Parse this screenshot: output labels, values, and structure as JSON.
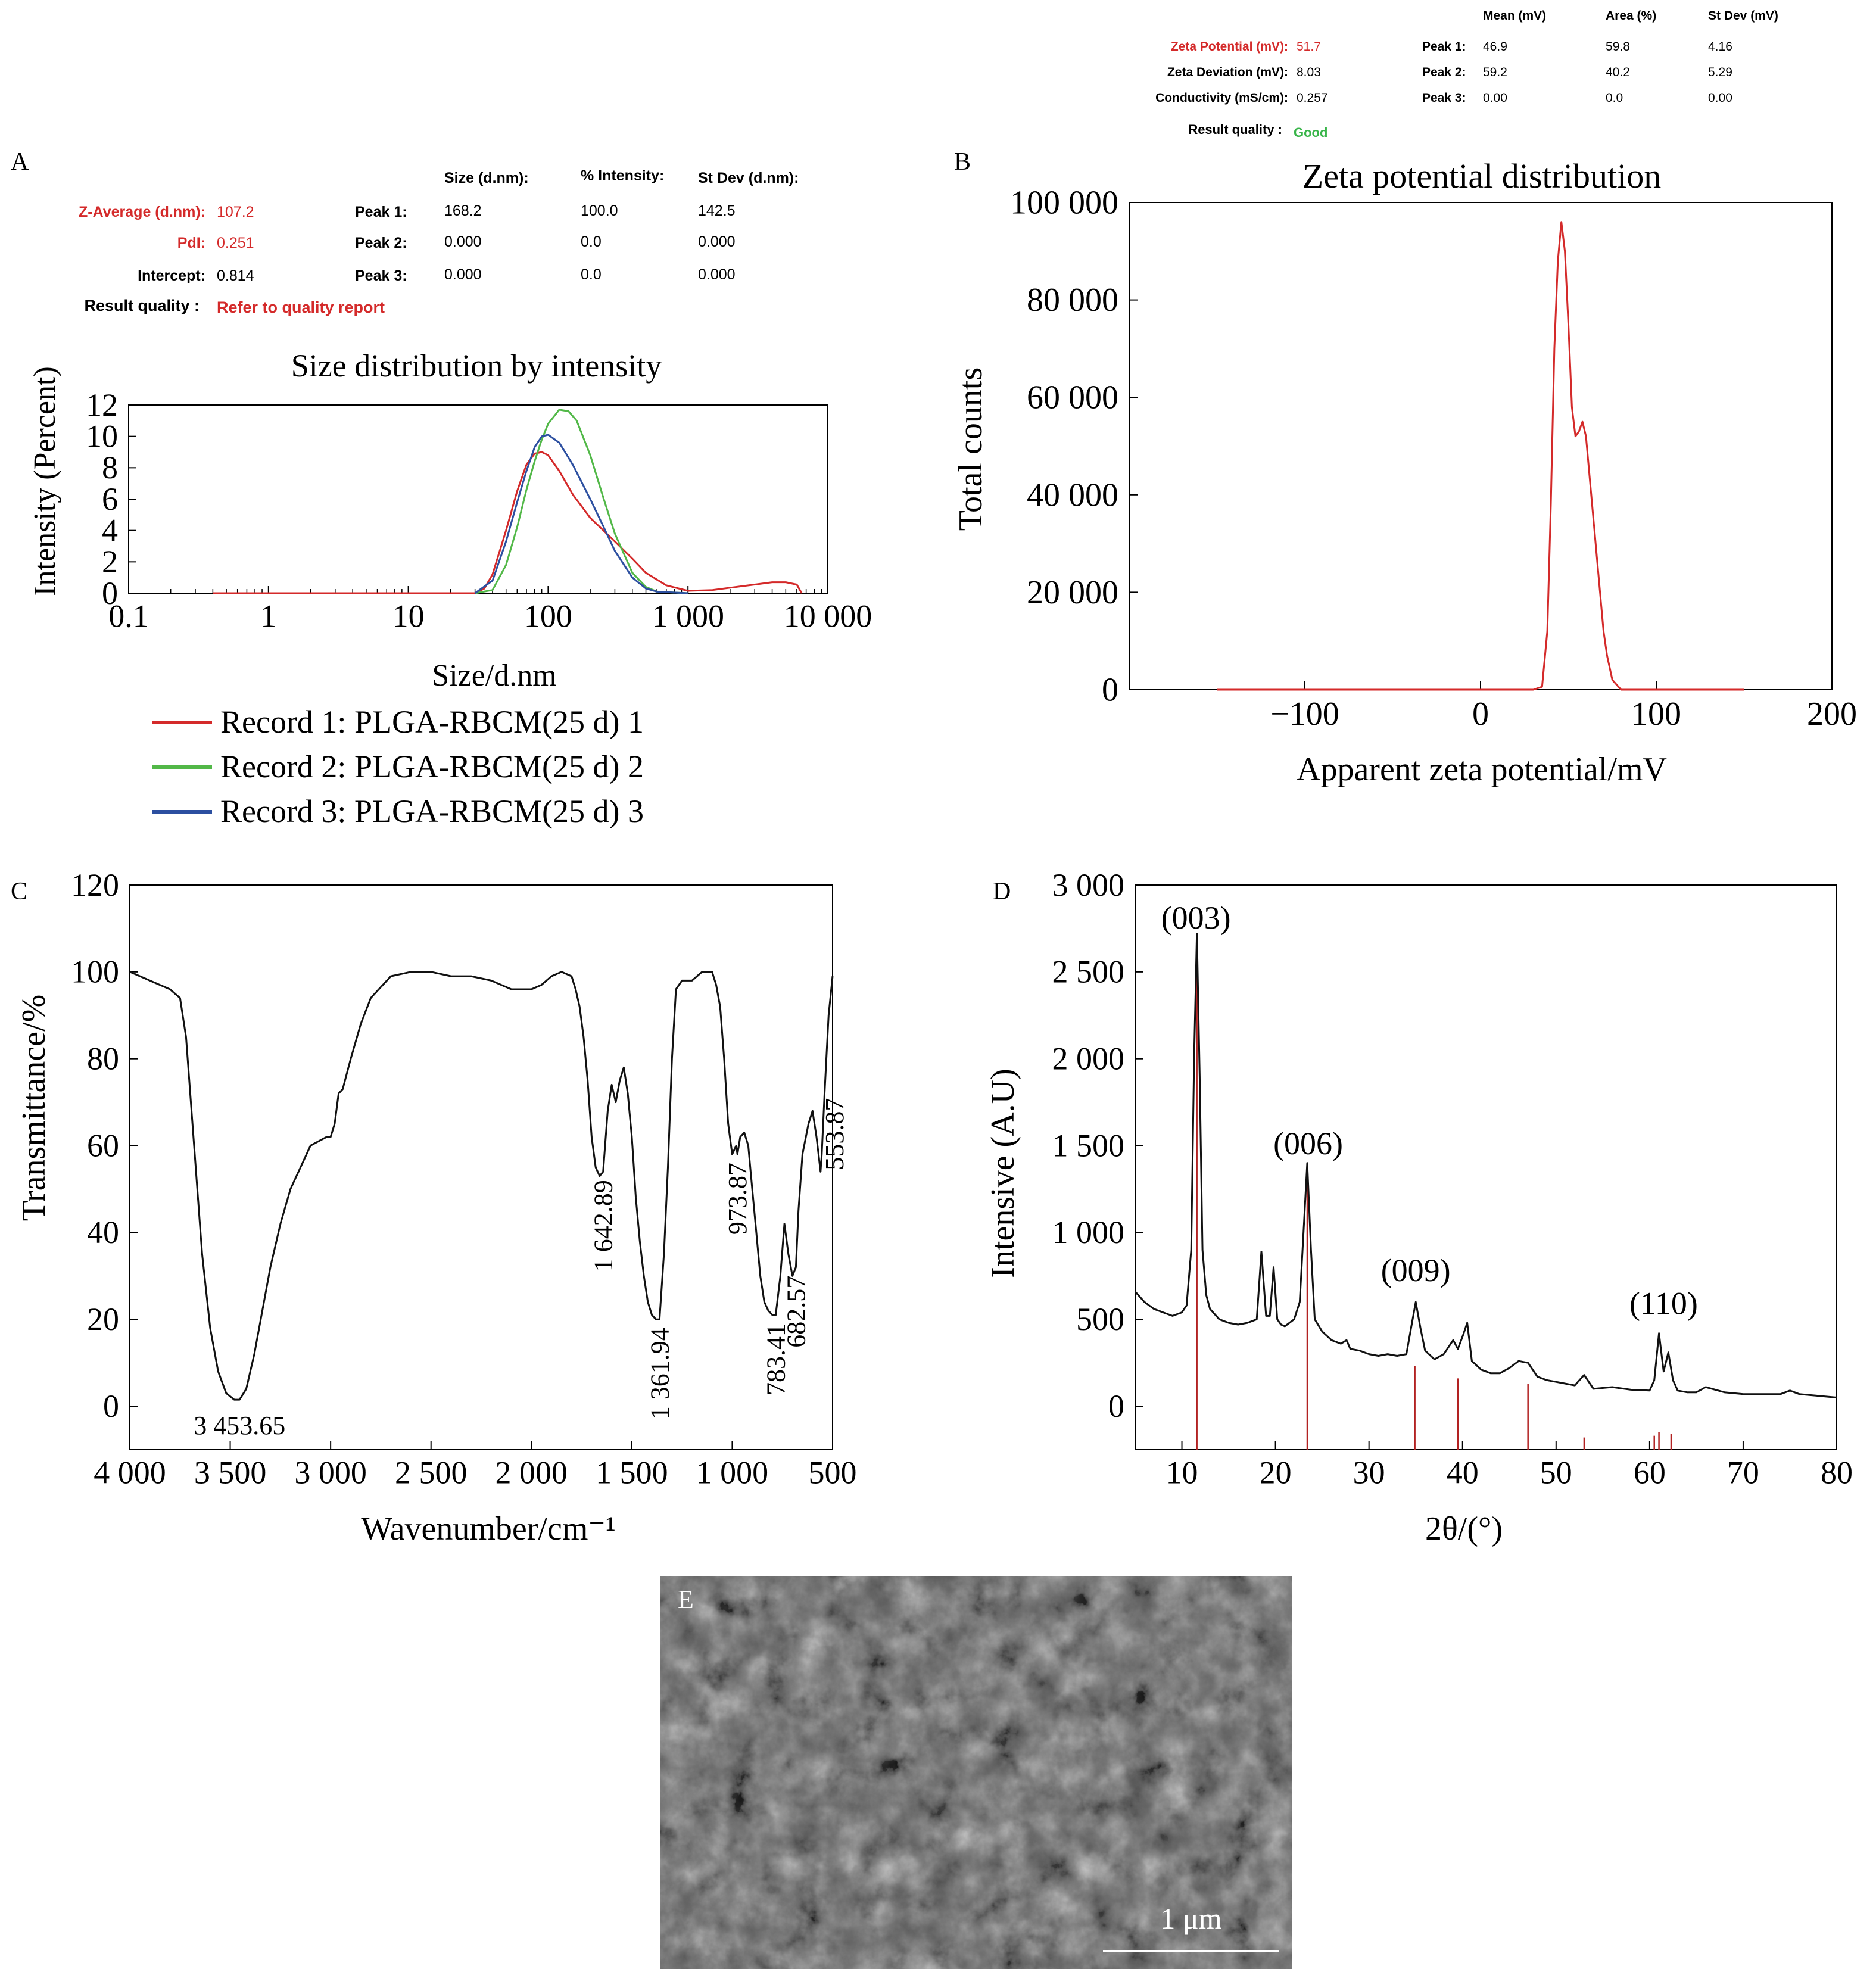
{
  "panels": {
    "A": {
      "letter": "A",
      "title": "Size distribution by intensity",
      "xlabel": "Size/d.nm",
      "ylabel": "Intensity (Percent)",
      "summary_headers": [
        "Size (d.nm):",
        "% Intensity:",
        "St Dev (d.nm):"
      ],
      "summary_left": [
        {
          "label": "Z-Average (d.nm):",
          "value": "107.2"
        },
        {
          "label": "PdI:",
          "value": "0.251"
        },
        {
          "label": "Intercept:",
          "value": "0.814"
        },
        {
          "label": "Result quality :",
          "value": "Refer to quality report"
        }
      ],
      "summary_peaks": [
        {
          "label": "Peak 1:",
          "values": [
            "168.2",
            "100.0",
            "142.5"
          ]
        },
        {
          "label": "Peak 2:",
          "values": [
            "0.000",
            "0.0",
            "0.000"
          ]
        },
        {
          "label": "Peak 3:",
          "values": [
            "0.000",
            "0.0",
            "0.000"
          ]
        }
      ]
    },
    "B": {
      "letter": "B",
      "title": "Zeta potential distribution",
      "xlabel": "Apparent zeta potential/mV",
      "ylabel": "Total counts",
      "summary_headers": [
        "Mean (mV)",
        "Area (%)",
        "St Dev (mV)"
      ],
      "summary_left": [
        {
          "label": "Zeta Potential (mV):",
          "value": "51.7"
        },
        {
          "label": "Zeta Deviation (mV):",
          "value": "8.03"
        },
        {
          "label": "Conductivity (mS/cm):",
          "value": "0.257"
        },
        {
          "label": "Result quality :",
          "value": "Good"
        }
      ],
      "summary_peaks": [
        {
          "label": "Peak 1:",
          "values": [
            "46.9",
            "59.8",
            "4.16"
          ]
        },
        {
          "label": "Peak 2:",
          "values": [
            "59.2",
            "40.2",
            "5.29"
          ]
        },
        {
          "label": "Peak 3:",
          "values": [
            "0.00",
            "0.0",
            "0.00"
          ]
        }
      ]
    },
    "C": {
      "letter": "C",
      "xlabel": "Wavenumber/cm⁻¹",
      "ylabel": "Transmittance/%"
    },
    "D": {
      "letter": "D",
      "xlabel": "2θ/(°)",
      "ylabel": "Intensive (A.U)"
    },
    "E": {
      "letter": "E",
      "scale_label": "1 μm"
    }
  },
  "colors": {
    "record1": "#d42a2a",
    "record2": "#52b848",
    "record3": "#2c4fa0",
    "zeta_line": "#d42a2a",
    "summary_highlight": "#d42a2a",
    "quality_good": "#39b54a",
    "ref_lines": "#b22222",
    "sem_bg": "#5c5c5c"
  },
  "chart_data": [
    {
      "id": "A",
      "type": "line",
      "xscale": "log",
      "xlim": [
        0.1,
        10000
      ],
      "ylim": [
        0,
        12
      ],
      "xticks": [
        0.1,
        1,
        10,
        100,
        1000,
        10000
      ],
      "xtick_labels": [
        "0.1",
        "1",
        "10",
        "100",
        "1 000",
        "10 000"
      ],
      "yticks": [
        0,
        2,
        4,
        6,
        8,
        10,
        12
      ],
      "ytick_labels": [
        "0",
        "2",
        "4",
        "6",
        "8",
        "10",
        "12"
      ],
      "legend": "bottom",
      "series": [
        {
          "name": "Record 1: PLGA-RBCM(25 d) 1",
          "x": [
            0.4,
            30,
            35,
            40,
            50,
            60,
            70,
            80,
            90,
            100,
            120,
            150,
            200,
            300,
            400,
            500,
            700,
            1000,
            1500,
            2000,
            3000,
            4000,
            5000,
            6000,
            6500
          ],
          "y": [
            0,
            0,
            0.3,
            1.2,
            4.0,
            6.5,
            8.2,
            8.9,
            9.0,
            8.8,
            7.8,
            6.3,
            4.8,
            3.3,
            2.2,
            1.3,
            0.5,
            0.15,
            0.2,
            0.35,
            0.55,
            0.7,
            0.7,
            0.55,
            0
          ]
        },
        {
          "name": "Record 2: PLGA-RBCM(25 d) 2",
          "x": [
            30,
            40,
            50,
            60,
            70,
            80,
            90,
            100,
            120,
            140,
            160,
            200,
            250,
            300,
            400,
            500,
            600,
            1000
          ],
          "y": [
            0,
            0.2,
            1.8,
            4.2,
            6.6,
            8.4,
            9.8,
            10.8,
            11.7,
            11.6,
            11.0,
            8.8,
            6.0,
            3.8,
            1.3,
            0.4,
            0.1,
            0
          ]
        },
        {
          "name": "Record 3: PLGA-RBCM(25 d) 3",
          "x": [
            30,
            40,
            50,
            60,
            70,
            80,
            90,
            100,
            120,
            150,
            200,
            250,
            300,
            400,
            500,
            600,
            1000
          ],
          "y": [
            0,
            0.8,
            3.3,
            5.8,
            7.8,
            9.3,
            10.0,
            10.1,
            9.6,
            8.2,
            6.0,
            4.2,
            2.7,
            1.0,
            0.3,
            0.1,
            0
          ]
        }
      ]
    },
    {
      "id": "B",
      "type": "line",
      "xlim": [
        -200,
        200
      ],
      "ylim": [
        0,
        100000
      ],
      "xticks": [
        -100,
        0,
        100,
        200
      ],
      "xtick_labels": [
        "−100",
        "0",
        "100",
        "200"
      ],
      "yticks": [
        0,
        20000,
        40000,
        60000,
        80000,
        100000
      ],
      "ytick_labels": [
        "0",
        "20 000",
        "40 000",
        "60 000",
        "80 000",
        "100 000"
      ],
      "series": [
        {
          "name": "",
          "x": [
            -150,
            30,
            35,
            38,
            40,
            42,
            44,
            46,
            48,
            50,
            52,
            54,
            56,
            58,
            60,
            62,
            64,
            66,
            68,
            70,
            72,
            75,
            80,
            150
          ],
          "y": [
            0,
            0,
            600,
            12000,
            38000,
            70000,
            88000,
            96000,
            90000,
            75000,
            58000,
            52000,
            53000,
            55000,
            52000,
            44000,
            36000,
            28000,
            20000,
            12000,
            7000,
            2000,
            0,
            0
          ]
        }
      ]
    },
    {
      "id": "C",
      "type": "line",
      "xlim": [
        4000,
        500
      ],
      "ylim": [
        -10,
        120
      ],
      "xticks": [
        4000,
        3500,
        3000,
        2500,
        2000,
        1500,
        1000,
        500
      ],
      "xtick_labels": [
        "4 000",
        "3 500",
        "3 000",
        "2 500",
        "2 000",
        "1 500",
        "1 000",
        "500"
      ],
      "yticks": [
        0,
        20,
        40,
        60,
        80,
        100,
        120
      ],
      "ytick_labels": [
        "0",
        "20",
        "40",
        "60",
        "80",
        "100",
        "120"
      ],
      "series": [
        {
          "name": "",
          "x": [
            4000,
            3900,
            3800,
            3750,
            3720,
            3680,
            3640,
            3600,
            3560,
            3520,
            3480,
            3453.65,
            3420,
            3380,
            3340,
            3300,
            3250,
            3200,
            3150,
            3100,
            3060,
            3020,
            3000,
            2980,
            2960,
            2940,
            2900,
            2850,
            2800,
            2700,
            2600,
            2500,
            2400,
            2300,
            2200,
            2100,
            2000,
            1950,
            1900,
            1850,
            1800,
            1780,
            1760,
            1740,
            1720,
            1700,
            1680,
            1660,
            1642.89,
            1620,
            1600,
            1580,
            1560,
            1540,
            1520,
            1500,
            1480,
            1460,
            1440,
            1420,
            1400,
            1380,
            1361.94,
            1340,
            1320,
            1300,
            1280,
            1250,
            1200,
            1150,
            1100,
            1080,
            1060,
            1040,
            1020,
            1000,
            980,
            973.87,
            960,
            940,
            920,
            900,
            880,
            860,
            840,
            820,
            800,
            783.41,
            760,
            740,
            720,
            700,
            682.57,
            670,
            650,
            620,
            600,
            580,
            560,
            553.87,
            540,
            520,
            500
          ],
          "y": [
            100,
            98,
            96,
            94,
            85,
            60,
            35,
            18,
            8,
            3,
            1.5,
            1.5,
            4,
            12,
            22,
            32,
            42,
            50,
            55,
            60,
            61,
            62,
            62,
            65,
            72,
            73,
            80,
            88,
            94,
            99,
            100,
            100,
            99,
            99,
            98,
            96,
            96,
            97,
            99,
            100,
            99,
            96,
            92,
            85,
            75,
            62,
            55,
            53,
            54,
            68,
            74,
            70,
            75,
            78,
            72,
            62,
            48,
            38,
            30,
            24,
            21,
            20,
            20,
            35,
            55,
            80,
            96,
            98,
            98,
            100,
            100,
            97,
            92,
            80,
            65,
            58,
            60,
            58,
            62,
            63,
            60,
            50,
            40,
            30,
            24,
            22,
            21,
            21,
            30,
            42,
            35,
            30,
            32,
            45,
            58,
            65,
            68,
            62,
            54,
            58,
            72,
            90,
            99
          ]
        }
      ]
    },
    {
      "id": "D",
      "type": "line",
      "xlim": [
        5,
        80
      ],
      "ylim": [
        -250,
        3000
      ],
      "xticks": [
        10,
        20,
        30,
        40,
        50,
        60,
        70,
        80
      ],
      "xtick_labels": [
        "10",
        "20",
        "30",
        "40",
        "50",
        "60",
        "70",
        "80"
      ],
      "yticks": [
        0,
        500,
        1000,
        1500,
        2000,
        2500,
        3000
      ],
      "ytick_labels": [
        "0",
        "500",
        "1 000",
        "1 500",
        "2 000",
        "2 500",
        "3 000"
      ],
      "annotations": [
        {
          "text": "(003)",
          "x": 11.5,
          "y": 2750
        },
        {
          "text": "(006)",
          "x": 23.5,
          "y": 1450
        },
        {
          "text": "(009)",
          "x": 35,
          "y": 720
        },
        {
          "text": "(110)",
          "x": 61.5,
          "y": 530
        }
      ],
      "reference_lines": [
        {
          "x": 11.6,
          "y": 2700
        },
        {
          "x": 23.4,
          "y": 1400
        },
        {
          "x": 34.9,
          "y": 230
        },
        {
          "x": 39.5,
          "y": 160
        },
        {
          "x": 47.0,
          "y": 130
        },
        {
          "x": 53.0,
          "y": -180
        },
        {
          "x": 60.5,
          "y": -170
        },
        {
          "x": 61.0,
          "y": -150
        },
        {
          "x": 62.3,
          "y": -160
        }
      ],
      "series": [
        {
          "name": "",
          "x": [
            5,
            6,
            7,
            8,
            9,
            10,
            10.5,
            11,
            11.3,
            11.6,
            11.9,
            12.2,
            12.6,
            13,
            14,
            15,
            16,
            17,
            18,
            18.5,
            19,
            19.4,
            19.8,
            20.2,
            20.6,
            21,
            22,
            22.6,
            23,
            23.4,
            23.8,
            24.2,
            25,
            26,
            27,
            27.6,
            28,
            29,
            30,
            31,
            32,
            33,
            34,
            34.5,
            35,
            35.5,
            36,
            37,
            38,
            39,
            39.5,
            40,
            40.5,
            41,
            42,
            43,
            44,
            45,
            46,
            47,
            48,
            49,
            50,
            52,
            53,
            54,
            56,
            58,
            60,
            60.5,
            61,
            61.5,
            62,
            62.5,
            63,
            64,
            65,
            66,
            68,
            70,
            72,
            74,
            75,
            76,
            78,
            80
          ],
          "y": [
            660,
            600,
            560,
            540,
            520,
            540,
            580,
            900,
            2000,
            2720,
            1900,
            900,
            640,
            560,
            500,
            480,
            470,
            480,
            500,
            890,
            520,
            520,
            800,
            500,
            470,
            460,
            500,
            600,
            1000,
            1400,
            900,
            500,
            430,
            380,
            360,
            380,
            330,
            320,
            300,
            290,
            300,
            290,
            300,
            450,
            600,
            450,
            320,
            270,
            300,
            380,
            330,
            400,
            480,
            260,
            210,
            190,
            190,
            220,
            260,
            250,
            170,
            150,
            140,
            120,
            180,
            100,
            110,
            95,
            90,
            150,
            420,
            200,
            310,
            150,
            90,
            80,
            80,
            110,
            80,
            70,
            70,
            70,
            90,
            70,
            60,
            50
          ]
        }
      ]
    }
  ]
}
